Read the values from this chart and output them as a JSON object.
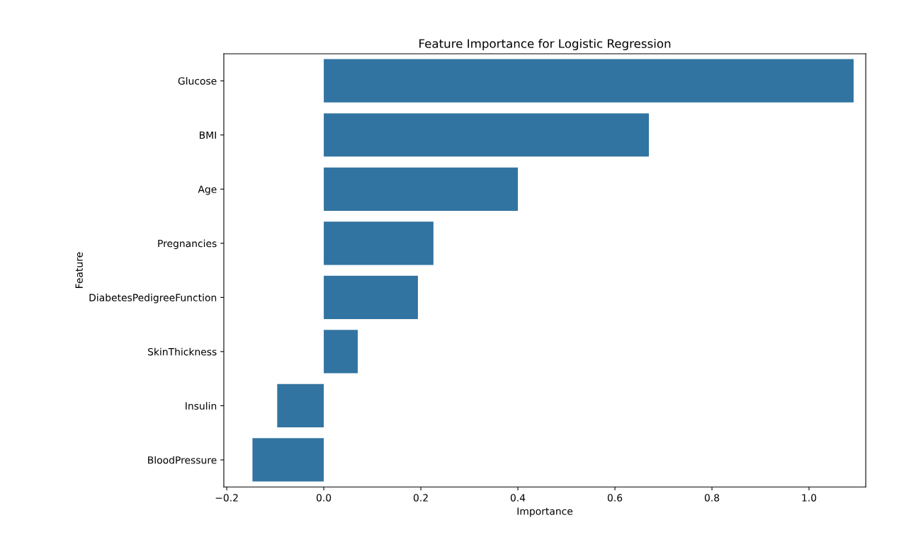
{
  "chart_data": {
    "type": "bar",
    "orientation": "horizontal",
    "title": "Feature Importance for Logistic Regression",
    "xlabel": "Importance",
    "ylabel": "Feature",
    "categories": [
      "Glucose",
      "BMI",
      "Age",
      "Pregnancies",
      "DiabetesPedigreeFunction",
      "SkinThickness",
      "Insulin",
      "BloodPressure"
    ],
    "values": [
      1.092,
      0.67,
      0.4,
      0.226,
      0.194,
      0.07,
      -0.096,
      -0.147
    ],
    "color": "#3274a1",
    "xlim": [
      -0.206,
      1.117
    ],
    "xticks": [
      {
        "value": -0.2,
        "label": "−0.2"
      },
      {
        "value": 0.0,
        "label": "0.0"
      },
      {
        "value": 0.2,
        "label": "0.2"
      },
      {
        "value": 0.4,
        "label": "0.4"
      },
      {
        "value": 0.6,
        "label": "0.6"
      },
      {
        "value": 0.8,
        "label": "0.8"
      },
      {
        "value": 1.0,
        "label": "1.0"
      }
    ],
    "grid": false,
    "legend": false
  }
}
